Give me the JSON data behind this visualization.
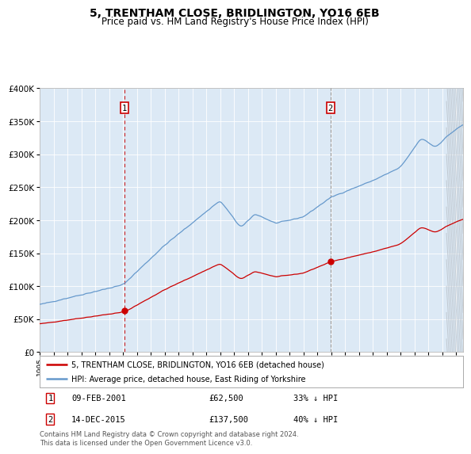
{
  "title": "5, TRENTHAM CLOSE, BRIDLINGTON, YO16 6EB",
  "subtitle": "Price paid vs. HM Land Registry's House Price Index (HPI)",
  "title_fontsize": 10,
  "subtitle_fontsize": 8.5,
  "bg_color": "#dce9f5",
  "legend_line1": "5, TRENTHAM CLOSE, BRIDLINGTON, YO16 6EB (detached house)",
  "legend_line2": "HPI: Average price, detached house, East Riding of Yorkshire",
  "note": "Contains HM Land Registry data © Crown copyright and database right 2024.\nThis data is licensed under the Open Government Licence v3.0.",
  "sale1_date": "09-FEB-2001",
  "sale1_price": 62500,
  "sale1_label": "33% ↓ HPI",
  "sale2_date": "14-DEC-2015",
  "sale2_price": 137500,
  "sale2_label": "40% ↓ HPI",
  "vline1_x": 2001.11,
  "vline2_x": 2015.95,
  "dot1_x": 2001.11,
  "dot1_y": 62500,
  "dot2_x": 2015.95,
  "dot2_y": 137500,
  "red_color": "#cc0000",
  "blue_color": "#6699cc",
  "ylim": [
    0,
    400000
  ],
  "xlim_start": 1995.0,
  "xlim_end": 2025.5,
  "yticks": [
    0,
    50000,
    100000,
    150000,
    200000,
    250000,
    300000,
    350000,
    400000
  ],
  "ylabels": [
    "£0",
    "£50K",
    "£100K",
    "£150K",
    "£200K",
    "£250K",
    "£300K",
    "£350K",
    "£400K"
  ]
}
